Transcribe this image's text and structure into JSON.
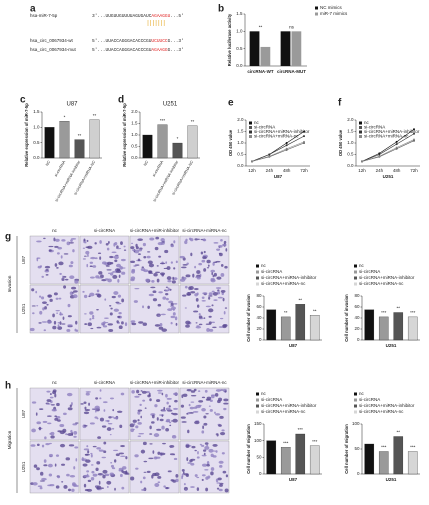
{
  "panel_labels": [
    "a",
    "b",
    "c",
    "d",
    "e",
    "f",
    "g",
    "h"
  ],
  "sequences": [
    {
      "name": "hsa-miR-7-5p",
      "parts": [
        "3'...UUGUUGUUUUAGUGAUC",
        "AGAAGGU",
        "...5'"
      ]
    },
    {
      "name": "hsa_circ_0067934-wt",
      "parts": [
        "5'...UUACCAGGGACACCCGU",
        "UCUUCC",
        "G...3'"
      ]
    },
    {
      "name": "hsa_circ_0067934-mut",
      "parts": [
        "5'...UUACCAGGGACACCCGU",
        "AGAAGG",
        "G...3'"
      ]
    }
  ],
  "micrographs": [
    {
      "side_label": "Invasion",
      "rows": [
        "U87",
        "U251"
      ],
      "columns": [
        "nc",
        "si-circRNA",
        "si-circRNA+miR-inhibitor",
        "si-circRNA+miRNA-nc"
      ]
    },
    {
      "side_label": "Migration",
      "rows": [
        "U87",
        "U251"
      ],
      "columns": [
        "nc",
        "si-circRNA",
        "si-circRNA+miR-inhibitor",
        "si-circRNA+miRNA-nc"
      ]
    }
  ],
  "chart_data": [
    {
      "type": "bar",
      "ylabel": "Relative luciferase activity",
      "categories": [
        "circRNA-WT",
        "circRNA-MUT"
      ],
      "series": [
        {
          "name": "NC mimics",
          "color": "#111111",
          "values": [
            1.0,
            1.0
          ]
        },
        {
          "name": "miR-7 mimics",
          "color": "#9a9a9a",
          "values": [
            0.55,
            1.0
          ]
        }
      ],
      "significance": [
        "**",
        "ns"
      ],
      "ylim": [
        0,
        1.5
      ],
      "yticks": [
        {
          "value": 0,
          "label": "0.0"
        },
        0.5,
        {
          "value": 1,
          "label": "1.0"
        },
        1.5
      ],
      "legend": "top-right"
    },
    {
      "type": "bar",
      "title": "U87",
      "ylabel": "Relative expression of miR-7-5p",
      "categories": [
        "NC",
        "si-circRNA",
        "si-circRNA+miRNA-inhibitor",
        "si-circRNA+miRNA-NC"
      ],
      "values": [
        1.0,
        1.2,
        0.6,
        1.25
      ],
      "colors": [
        "#111111",
        "#9a9a9a",
        "#555555",
        "#cfcfcf"
      ],
      "significance": [
        null,
        "*",
        "**",
        "**"
      ],
      "ylim": [
        0,
        1.5
      ],
      "yticks": [
        {
          "value": 0,
          "label": "0.0"
        },
        0.5,
        {
          "value": 1,
          "label": "1.0"
        },
        1.5
      ],
      "legend": "none"
    },
    {
      "type": "bar",
      "title": "U251",
      "ylabel": "Relative expression of miR-7-5p",
      "categories": [
        "NC",
        "si-circRNA",
        "si-circRNA+miRNA-inhibitor",
        "si-circRNA+miRNA-NC"
      ],
      "values": [
        1.0,
        1.45,
        0.65,
        1.4
      ],
      "colors": [
        "#111111",
        "#9a9a9a",
        "#555555",
        "#cfcfcf"
      ],
      "significance": [
        null,
        "***",
        "*",
        "**"
      ],
      "ylim": [
        0,
        2
      ],
      "yticks": [
        {
          "value": 0,
          "label": "0.0"
        },
        0.5,
        {
          "value": 1,
          "label": "1.0"
        },
        1.5,
        {
          "value": 2,
          "label": "2.0"
        }
      ],
      "legend": "none"
    },
    {
      "type": "line",
      "xlabel": "U87",
      "ylabel": "OD 450 value",
      "categories": [
        "12h",
        "24h",
        "48h",
        "72h"
      ],
      "series": [
        {
          "name": "nc",
          "color": "#111111",
          "values": [
            0.2,
            0.5,
            1.0,
            1.5
          ]
        },
        {
          "name": "si-circRNA",
          "color": "#555555",
          "values": [
            0.2,
            0.4,
            0.7,
            1.0
          ]
        },
        {
          "name": "si-circRNA+miRNA-inhibitor",
          "color": "#333333",
          "values": [
            0.2,
            0.5,
            0.9,
            1.3
          ]
        },
        {
          "name": "si-circRNA+miRNA-nc",
          "color": "#888888",
          "values": [
            0.2,
            0.42,
            0.75,
            1.05
          ]
        }
      ],
      "ylim": [
        0,
        2
      ],
      "yticks": [
        {
          "value": 0,
          "label": "0.0"
        },
        0.5,
        {
          "value": 1,
          "label": "1.0"
        },
        1.5,
        {
          "value": 2,
          "label": "2.0"
        }
      ],
      "legend": "upper-left"
    },
    {
      "type": "line",
      "xlabel": "U251",
      "ylabel": "OD 450 value",
      "categories": [
        "12h",
        "24h",
        "48h",
        "72h"
      ],
      "series": [
        {
          "name": "nc",
          "color": "#111111",
          "values": [
            0.2,
            0.55,
            1.05,
            1.6
          ]
        },
        {
          "name": "si-circRNA",
          "color": "#555555",
          "values": [
            0.2,
            0.4,
            0.75,
            1.1
          ]
        },
        {
          "name": "si-circRNA+miRNA-inhibitor",
          "color": "#333333",
          "values": [
            0.2,
            0.5,
            0.95,
            1.4
          ]
        },
        {
          "name": "si-circRNA+miRNA-nc",
          "color": "#888888",
          "values": [
            0.2,
            0.42,
            0.8,
            1.15
          ]
        }
      ],
      "ylim": [
        0,
        2
      ],
      "yticks": [
        {
          "value": 0,
          "label": "0.0"
        },
        0.5,
        {
          "value": 1,
          "label": "1.0"
        },
        1.5,
        {
          "value": 2,
          "label": "2.0"
        }
      ],
      "legend": "upper-left"
    },
    {
      "type": "bar",
      "xlabel": "U87",
      "ylabel": "Cell number of invasion",
      "categories": [
        "nc",
        "si-circRNA",
        "si-circRNA+miRNA-inhibitor",
        "si-circRNA+miRNA-nc"
      ],
      "values": [
        55,
        42,
        65,
        45
      ],
      "colors": [
        "#111111",
        "#9a9a9a",
        "#555555",
        "#d6d6d6"
      ],
      "significance": [
        null,
        "**",
        "**",
        "**"
      ],
      "ylim": [
        0,
        80
      ],
      "yticks": [
        0,
        20,
        40,
        60,
        80
      ],
      "legend": "top"
    },
    {
      "type": "bar",
      "xlabel": "U251",
      "ylabel": "Cell number of invasion",
      "categories": [
        "nc",
        "si-circRNA",
        "si-circRNA+miRNA-inhibitor",
        "si-circRNA+miRNA-nc"
      ],
      "values": [
        55,
        42,
        50,
        42
      ],
      "colors": [
        "#111111",
        "#9a9a9a",
        "#555555",
        "#d6d6d6"
      ],
      "significance": [
        null,
        "***",
        "**",
        "***"
      ],
      "ylim": [
        0,
        80
      ],
      "yticks": [
        0,
        20,
        40,
        60,
        80
      ],
      "legend": "top"
    },
    {
      "type": "bar",
      "xlabel": "U87",
      "ylabel": "Cell number of migration",
      "categories": [
        "nc",
        "si-circRNA",
        "si-circRNA+miRNA-inhibitor",
        "si-circRNA+miRNA-nc"
      ],
      "values": [
        100,
        80,
        120,
        85
      ],
      "colors": [
        "#111111",
        "#9a9a9a",
        "#555555",
        "#d6d6d6"
      ],
      "significance": [
        null,
        "***",
        "***",
        "***"
      ],
      "ylim": [
        0,
        150
      ],
      "yticks": [
        0,
        50,
        100,
        150
      ],
      "legend": "top"
    },
    {
      "type": "bar",
      "xlabel": "U251",
      "ylabel": "Cell number of migration",
      "categories": [
        "nc",
        "si-circRNA",
        "si-circRNA+miRNA-inhibitor",
        "si-circRNA+miRNA-nc"
      ],
      "values": [
        60,
        45,
        75,
        45
      ],
      "colors": [
        "#111111",
        "#9a9a9a",
        "#555555",
        "#d6d6d6"
      ],
      "significance": [
        null,
        "***",
        "**",
        "***"
      ],
      "ylim": [
        0,
        100
      ],
      "yticks": [
        0,
        50,
        100
      ],
      "legend": "top"
    }
  ]
}
